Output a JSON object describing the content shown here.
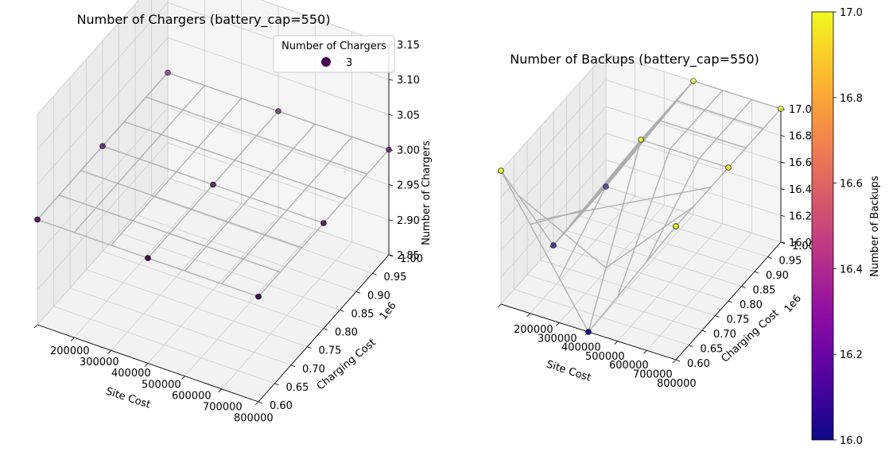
{
  "chart_data": [
    {
      "type": "scatter",
      "projection": "3d",
      "title": "Number of Chargers (battery_cap=550)",
      "xlabel": "Site Cost",
      "ylabel": "Charging Cost",
      "zlabel": "Number of Chargers",
      "x_ticks": [
        "200000",
        "300000",
        "400000",
        "500000",
        "600000",
        "700000",
        "800000"
      ],
      "y_ticks": [
        "0.60",
        "0.65",
        "0.70",
        "0.75",
        "0.80",
        "0.85",
        "0.90",
        "0.95",
        "1.00"
      ],
      "y_offset_label": "1e6",
      "z_ticks": [
        "2.85",
        "2.90",
        "2.95",
        "3.00",
        "3.05",
        "3.10",
        "3.15"
      ],
      "xlim": [
        200000,
        800000
      ],
      "ylim": [
        600000,
        1000000
      ],
      "zlim": [
        2.85,
        3.15
      ],
      "legend": {
        "title": "Number of Chargers",
        "entries": [
          {
            "label": "3",
            "color": "#440154"
          }
        ],
        "position": "upper right"
      },
      "surface": {
        "x": [
          200000,
          500000,
          800000
        ],
        "y": [
          600000,
          800000,
          1000000
        ],
        "z": [
          [
            3,
            3,
            3
          ],
          [
            3,
            3,
            3
          ],
          [
            3,
            3,
            3
          ]
        ]
      },
      "points": [
        {
          "x": 200000,
          "y": 600000,
          "z": 3
        },
        {
          "x": 200000,
          "y": 800000,
          "z": 3
        },
        {
          "x": 200000,
          "y": 1000000,
          "z": 3
        },
        {
          "x": 500000,
          "y": 600000,
          "z": 3
        },
        {
          "x": 500000,
          "y": 800000,
          "z": 3
        },
        {
          "x": 500000,
          "y": 1000000,
          "z": 3
        },
        {
          "x": 800000,
          "y": 600000,
          "z": 3
        },
        {
          "x": 800000,
          "y": 800000,
          "z": 3
        },
        {
          "x": 800000,
          "y": 1000000,
          "z": 3
        }
      ],
      "grid": true
    },
    {
      "type": "scatter",
      "projection": "3d",
      "title": "Number of Backups (battery_cap=550)",
      "xlabel": "Site Cost",
      "ylabel": "Charging Cost",
      "zlabel": "",
      "x_ticks": [
        "200000",
        "300000",
        "400000",
        "500000",
        "600000",
        "700000",
        "800000"
      ],
      "y_ticks": [
        "0.60",
        "0.65",
        "0.70",
        "0.75",
        "0.80",
        "0.85",
        "0.90",
        "0.95",
        "1.00"
      ],
      "y_offset_label": "1e6",
      "z_ticks": [
        "16.0",
        "16.2",
        "16.4",
        "16.6",
        "16.8",
        "17.0"
      ],
      "xlim": [
        200000,
        800000
      ],
      "ylim": [
        600000,
        1000000
      ],
      "zlim": [
        16,
        17
      ],
      "surface": {
        "x": [
          200000,
          500000,
          800000
        ],
        "y": [
          600000,
          800000,
          1000000
        ],
        "z": [
          [
            17,
            16,
            16
          ],
          [
            16,
            17,
            17
          ],
          [
            17,
            17,
            17
          ]
        ]
      },
      "points": [
        {
          "x": 200000,
          "y": 600000,
          "z": 17
        },
        {
          "x": 200000,
          "y": 800000,
          "z": 16
        },
        {
          "x": 200000,
          "y": 1000000,
          "z": 16
        },
        {
          "x": 500000,
          "y": 600000,
          "z": 16
        },
        {
          "x": 500000,
          "y": 800000,
          "z": 17
        },
        {
          "x": 500000,
          "y": 1000000,
          "z": 17
        },
        {
          "x": 800000,
          "y": 600000,
          "z": 17
        },
        {
          "x": 800000,
          "y": 800000,
          "z": 17
        },
        {
          "x": 800000,
          "y": 1000000,
          "z": 17
        }
      ],
      "colorbar": {
        "label": "Number of Backups",
        "ticks": [
          "16.0",
          "16.2",
          "16.4",
          "16.6",
          "16.8",
          "17.0"
        ],
        "range": [
          16,
          17
        ],
        "colormap": "plasma"
      },
      "grid": true
    }
  ]
}
